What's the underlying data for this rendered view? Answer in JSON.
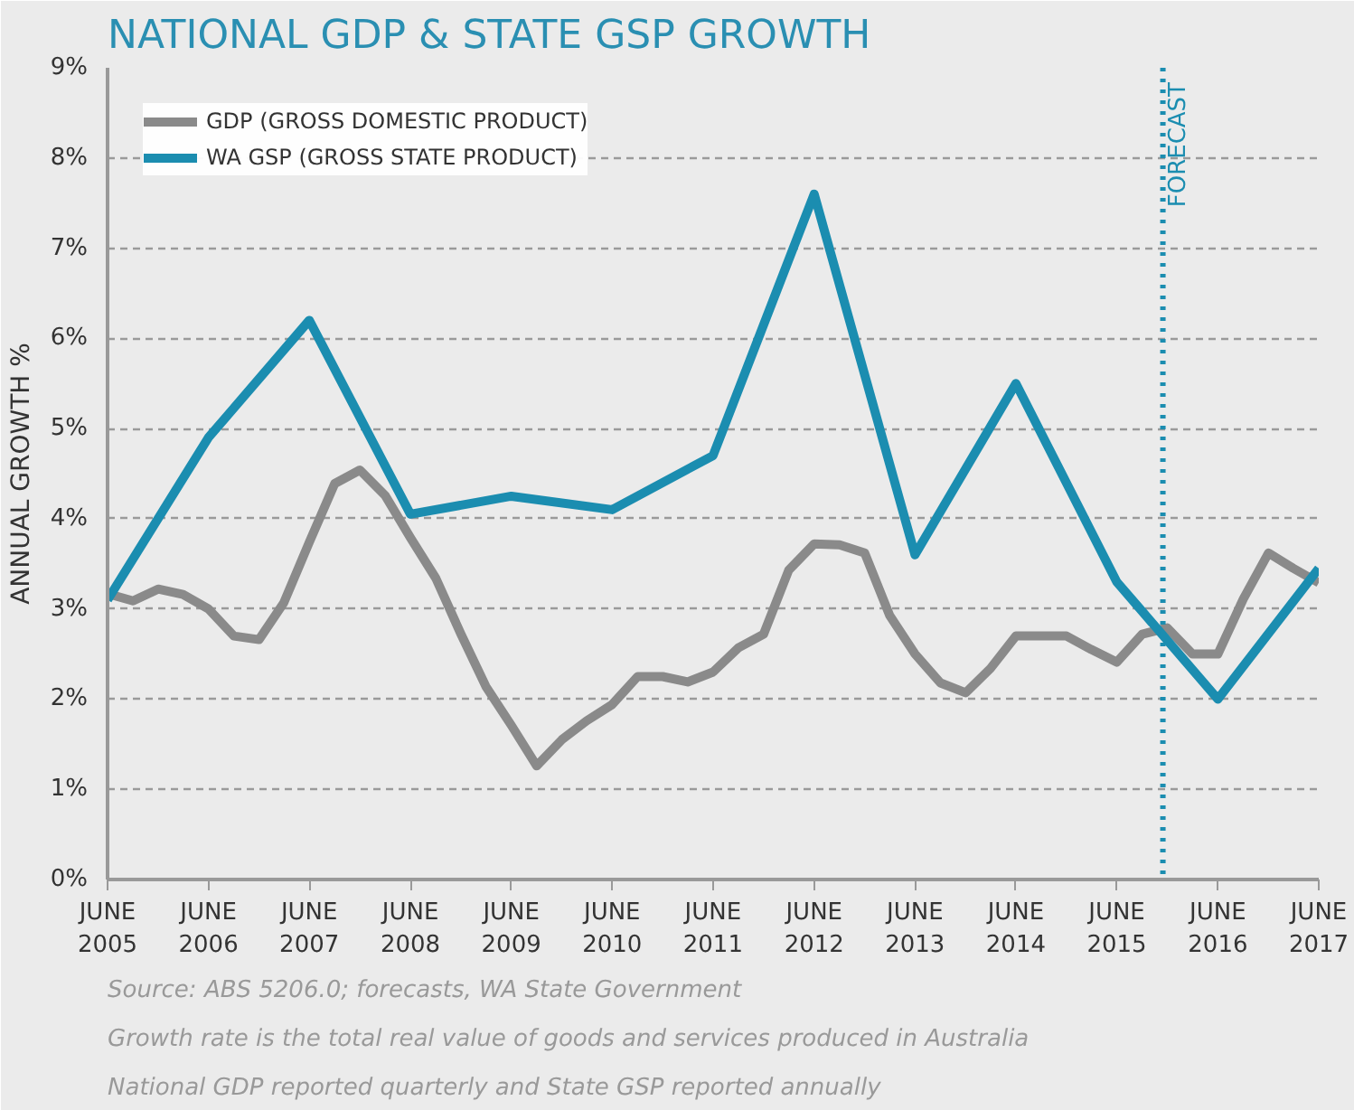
{
  "chart_data": {
    "type": "line",
    "title": "NATIONAL GDP & STATE GSP GROWTH",
    "ylabel": "ANNUAL GROWTH %",
    "series": [
      {
        "name": "GDP (GROSS DOMESTIC PRODUCT)",
        "color": "#8a8a8a",
        "x": [
          "2005-06",
          "2005-09",
          "2005-12",
          "2006-03",
          "2006-06",
          "2006-09",
          "2006-12",
          "2007-03",
          "2007-06",
          "2007-09",
          "2007-12",
          "2008-03",
          "2008-06",
          "2008-09",
          "2008-12",
          "2009-03",
          "2009-06",
          "2009-09",
          "2009-12",
          "2010-03",
          "2010-06",
          "2010-09",
          "2010-12",
          "2011-03",
          "2011-06",
          "2011-09",
          "2011-12",
          "2012-03",
          "2012-06",
          "2012-09",
          "2012-12",
          "2013-03",
          "2013-06",
          "2013-09",
          "2013-12",
          "2014-03",
          "2014-06",
          "2014-09",
          "2014-12",
          "2015-03",
          "2015-06",
          "2015-09",
          "2015-12",
          "2016-03",
          "2016-06",
          "2016-09",
          "2016-12",
          "2017-03",
          "2017-06"
        ],
        "values": [
          3.17,
          3.09,
          3.22,
          3.16,
          3.0,
          2.7,
          2.66,
          3.07,
          3.74,
          4.39,
          4.54,
          4.26,
          3.79,
          3.34,
          2.72,
          2.14,
          1.71,
          1.26,
          1.55,
          1.76,
          1.94,
          2.25,
          2.25,
          2.19,
          2.3,
          2.57,
          2.72,
          3.43,
          3.72,
          3.71,
          3.62,
          2.93,
          2.5,
          2.18,
          2.07,
          2.34,
          2.7,
          2.7,
          2.7,
          2.55,
          2.41,
          2.72,
          2.79,
          2.5,
          2.5,
          3.11,
          3.62,
          3.45,
          3.29
        ]
      },
      {
        "name": "WA GSP (GROSS STATE PRODUCT)",
        "color": "#1b8db0",
        "x": [
          "2005-06",
          "2006-06",
          "2007-06",
          "2008-06",
          "2009-06",
          "2010-06",
          "2011-06",
          "2012-06",
          "2013-06",
          "2014-06",
          "2015-06",
          "2016-06",
          "2017-06"
        ],
        "values": [
          3.1,
          4.9,
          6.2,
          4.05,
          4.25,
          4.1,
          4.7,
          7.6,
          3.6,
          5.5,
          3.3,
          2.0,
          3.45
        ]
      }
    ],
    "xlim": [
      "2005-06",
      "2017-06"
    ],
    "xticks": [
      {
        "value": "2005-06",
        "label": "JUNE\n2005"
      },
      {
        "value": "2006-06",
        "label": "JUNE\n2006"
      },
      {
        "value": "2007-06",
        "label": "JUNE\n2007"
      },
      {
        "value": "2008-06",
        "label": "JUNE\n2008"
      },
      {
        "value": "2009-06",
        "label": "JUNE\n2009"
      },
      {
        "value": "2010-06",
        "label": "JUNE\n2010"
      },
      {
        "value": "2011-06",
        "label": "JUNE\n2011"
      },
      {
        "value": "2012-06",
        "label": "JUNE\n2012"
      },
      {
        "value": "2013-06",
        "label": "JUNE\n2013"
      },
      {
        "value": "2014-06",
        "label": "JUNE\n2014"
      },
      {
        "value": "2015-06",
        "label": "JUNE\n2015"
      },
      {
        "value": "2016-06",
        "label": "JUNE\n2016"
      },
      {
        "value": "2017-06",
        "label": "JUNE\n2017"
      }
    ],
    "ylim": [
      0,
      9
    ],
    "yticks": [
      {
        "value": 0,
        "label": "0%"
      },
      {
        "value": 1,
        "label": "1%"
      },
      {
        "value": 2,
        "label": "2%"
      },
      {
        "value": 3,
        "label": "3%"
      },
      {
        "value": 4,
        "label": "4%"
      },
      {
        "value": 5,
        "label": "5%"
      },
      {
        "value": 6,
        "label": "6%"
      },
      {
        "value": 7,
        "label": "7%"
      },
      {
        "value": 8,
        "label": "8%"
      },
      {
        "value": 9,
        "label": "9%"
      }
    ],
    "ref_lines": [
      {
        "axis": "x",
        "value": "2015-11-15",
        "label": "FORECAST",
        "color": "#1b8db0",
        "line_style": "dotted"
      }
    ],
    "grid": "y",
    "legend": "top left",
    "marker": "none",
    "line_style": "solid",
    "annotations": [
      "Source: ABS 5206.0; forecasts, WA State Government",
      "Growth rate is the total real value of goods and services produced in Australia",
      "National GDP reported quarterly and State GSP reported annually"
    ]
  }
}
